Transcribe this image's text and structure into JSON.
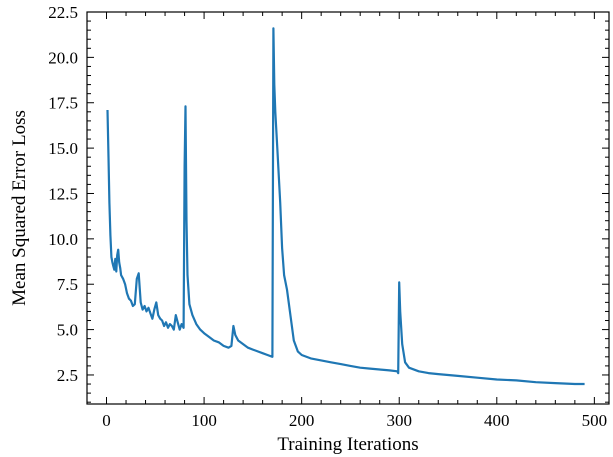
{
  "chart_data": {
    "type": "line",
    "xlabel": "Training Iterations",
    "ylabel": "Mean Squared Error Loss",
    "xlim": [
      -20,
      515
    ],
    "ylim": [
      0.9,
      22.5
    ],
    "xticks": [
      0,
      100,
      200,
      300,
      400,
      500
    ],
    "xtick_labels": [
      "0",
      "100",
      "200",
      "300",
      "400",
      "500"
    ],
    "yticks": [
      2.5,
      5.0,
      7.5,
      10.0,
      12.5,
      15.0,
      17.5,
      20.0,
      22.5
    ],
    "ytick_labels": [
      "2.5",
      "5.0",
      "7.5",
      "10.0",
      "12.5",
      "15.0",
      "17.5",
      "20.0",
      "22.5"
    ],
    "grid": false,
    "line_color": "#1f77b4",
    "series": [
      {
        "x": [
          1,
          2,
          3,
          4,
          5,
          6,
          7,
          8,
          9,
          10,
          11,
          12,
          13,
          14,
          15,
          17,
          19,
          21,
          23,
          25,
          27,
          29,
          31,
          33,
          35,
          37,
          39,
          41,
          43,
          45,
          47,
          49,
          51,
          53,
          55,
          57,
          59,
          61,
          63,
          65,
          67,
          69,
          71,
          73,
          75,
          77,
          79,
          80,
          81,
          82,
          83,
          85,
          88,
          92,
          96,
          100,
          105,
          110,
          115,
          120,
          125,
          128,
          130,
          132,
          135,
          140,
          145,
          150,
          155,
          160,
          165,
          170,
          171,
          172,
          173,
          175,
          178,
          180,
          182,
          185,
          188,
          192,
          196,
          200,
          210,
          220,
          230,
          240,
          250,
          260,
          270,
          280,
          290,
          298,
          299,
          300,
          301,
          303,
          306,
          310,
          320,
          330,
          340,
          360,
          380,
          400,
          420,
          440,
          460,
          480,
          490
        ],
        "y": [
          17.1,
          14.5,
          12.0,
          10.2,
          9.0,
          8.7,
          8.5,
          8.3,
          8.9,
          8.2,
          9.1,
          9.4,
          8.7,
          8.4,
          8.0,
          7.8,
          7.5,
          7.0,
          6.7,
          6.6,
          6.3,
          6.4,
          7.8,
          8.1,
          6.5,
          6.1,
          6.3,
          6.0,
          6.2,
          5.9,
          5.6,
          6.1,
          6.5,
          5.8,
          5.6,
          5.5,
          5.2,
          5.4,
          5.1,
          5.3,
          5.2,
          5.0,
          5.8,
          5.4,
          5.0,
          5.3,
          5.1,
          14.0,
          17.3,
          11.0,
          8.0,
          6.4,
          5.8,
          5.3,
          5.0,
          4.8,
          4.6,
          4.4,
          4.3,
          4.1,
          4.0,
          4.1,
          5.2,
          4.7,
          4.4,
          4.2,
          4.0,
          3.9,
          3.8,
          3.7,
          3.6,
          3.5,
          21.6,
          18.5,
          17.0,
          15.0,
          12.0,
          9.5,
          8.0,
          7.2,
          6.0,
          4.4,
          3.8,
          3.6,
          3.4,
          3.3,
          3.2,
          3.1,
          3.0,
          2.9,
          2.85,
          2.8,
          2.75,
          2.7,
          2.6,
          7.6,
          6.0,
          4.2,
          3.2,
          2.9,
          2.7,
          2.6,
          2.55,
          2.45,
          2.35,
          2.25,
          2.2,
          2.1,
          2.05,
          2.0,
          2.0
        ]
      }
    ]
  }
}
